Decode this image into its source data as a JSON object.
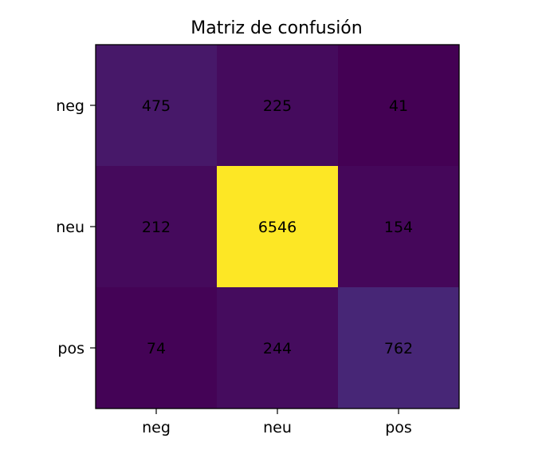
{
  "chart_data": {
    "type": "heatmap",
    "title": "Matriz de confusión",
    "xlabel": "",
    "ylabel": "",
    "x_categories": [
      "neg",
      "neu",
      "pos"
    ],
    "y_categories": [
      "neg",
      "neu",
      "pos"
    ],
    "values": [
      [
        475,
        225,
        41
      ],
      [
        212,
        6546,
        154
      ],
      [
        74,
        244,
        762
      ]
    ],
    "colormap": "viridis",
    "grid": false,
    "legend": "none"
  }
}
